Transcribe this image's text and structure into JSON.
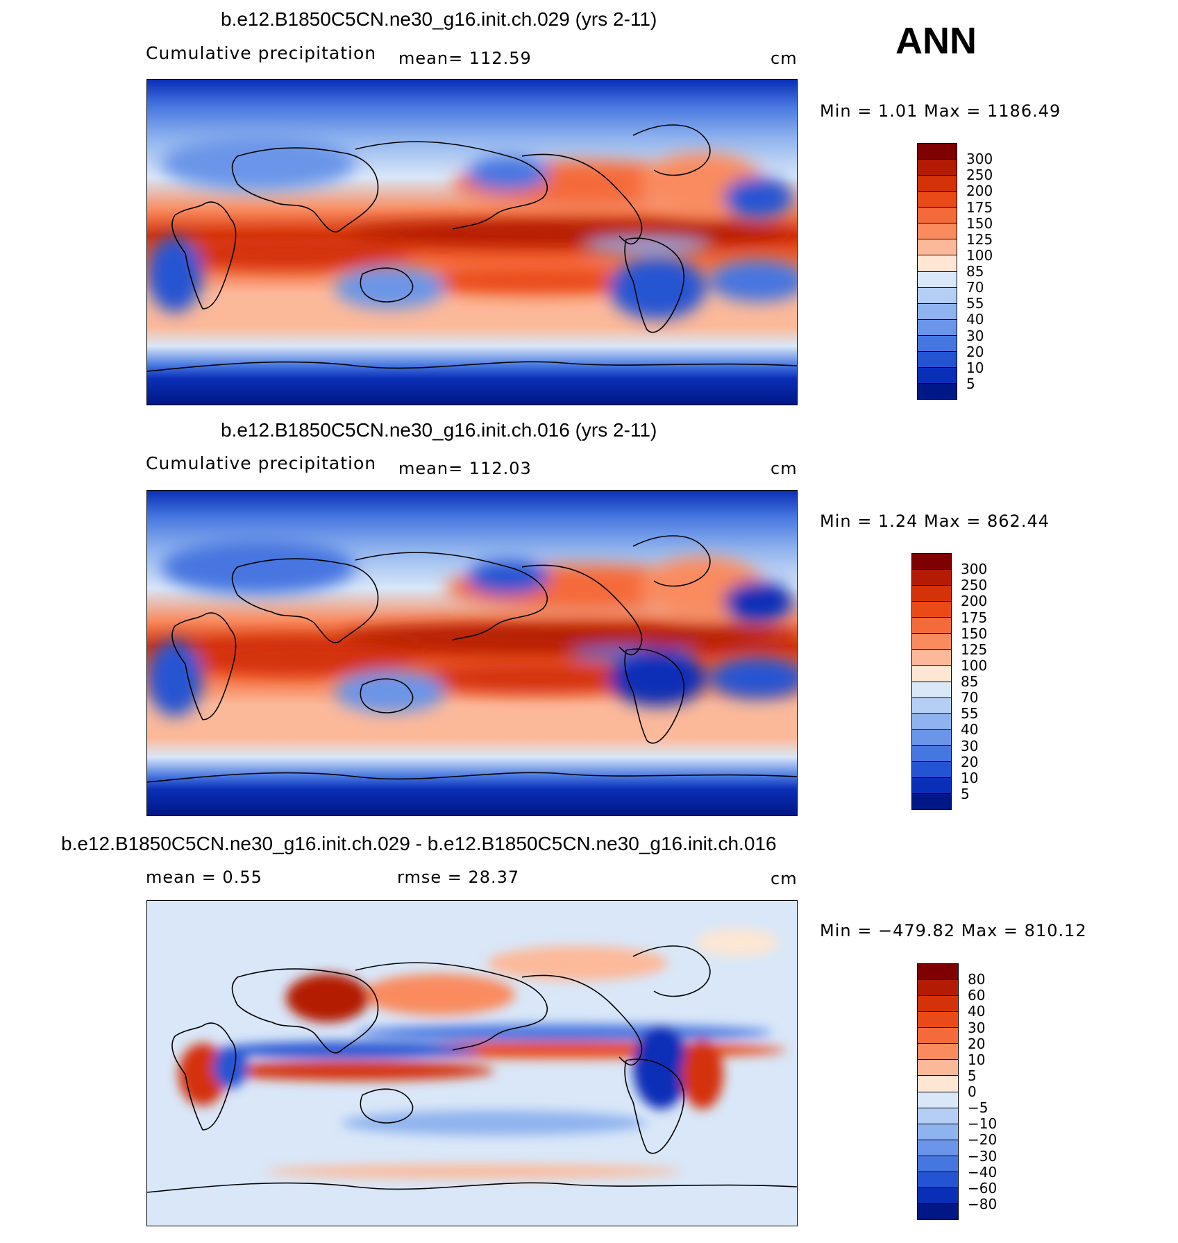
{
  "season": "ANN",
  "panels": [
    {
      "title": "b.e12.B1850C5CN.ne30_g16.init.ch.029 (yrs 2-11)",
      "left_label": "Cumulative precipitation",
      "mid_label": "mean=  112.59",
      "units": "cm",
      "minmax": "Min =     1.01  Max  =  1186.49",
      "colorbar": {
        "labels": [
          "300",
          "250",
          "200",
          "175",
          "150",
          "125",
          "100",
          "85",
          "70",
          "55",
          "40",
          "30",
          "20",
          "10",
          "5"
        ],
        "colors": [
          "#7f0000",
          "#b31b05",
          "#d43208",
          "#ea4a18",
          "#f56a3a",
          "#f98b5e",
          "#fcb99a",
          "#fde6d3",
          "#d9e7f8",
          "#b5cff4",
          "#8fb3ee",
          "#6a95e8",
          "#4676e0",
          "#2554d2",
          "#0a2fb7",
          "#001786"
        ]
      }
    },
    {
      "title": "b.e12.B1850C5CN.ne30_g16.init.ch.016 (yrs 2-11)",
      "left_label": "Cumulative precipitation",
      "mid_label": "mean=  112.03",
      "units": "cm",
      "minmax": "Min =     1.24  Max  =  862.44",
      "colorbar": {
        "labels": [
          "300",
          "250",
          "200",
          "175",
          "150",
          "125",
          "100",
          "85",
          "70",
          "55",
          "40",
          "30",
          "20",
          "10",
          "5"
        ],
        "colors": [
          "#7f0000",
          "#b31b05",
          "#d43208",
          "#ea4a18",
          "#f56a3a",
          "#f98b5e",
          "#fcb99a",
          "#fde6d3",
          "#d9e7f8",
          "#b5cff4",
          "#8fb3ee",
          "#6a95e8",
          "#4676e0",
          "#2554d2",
          "#0a2fb7",
          "#001786"
        ]
      }
    },
    {
      "title": "b.e12.B1850C5CN.ne30_g16.init.ch.029 - b.e12.B1850C5CN.ne30_g16.init.ch.016",
      "left_label": "mean =     0.55",
      "mid_label": "rmse  =    28.37",
      "units": "cm",
      "minmax": "Min  = −479.82  Max  =  810.12",
      "colorbar": {
        "labels": [
          "80",
          "60",
          "40",
          "30",
          "20",
          "10",
          "5",
          "0",
          "−5",
          "−10",
          "−20",
          "−30",
          "−40",
          "−60",
          "−80"
        ],
        "colors": [
          "#7f0000",
          "#b31b05",
          "#d43208",
          "#ea4a18",
          "#f56a3a",
          "#f98b5e",
          "#fcb99a",
          "#fde6d3",
          "#d9e7f8",
          "#b5cff4",
          "#8fb3ee",
          "#6a95e8",
          "#4676e0",
          "#2554d2",
          "#0a2fb7",
          "#001786"
        ]
      }
    }
  ]
}
